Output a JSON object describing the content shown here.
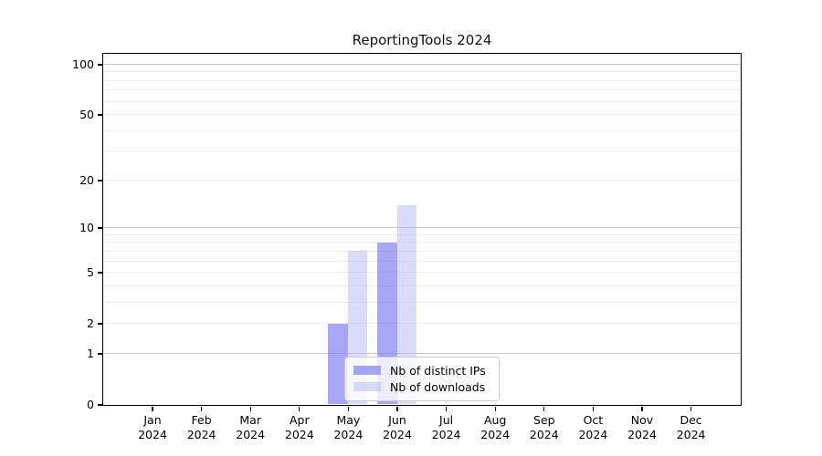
{
  "chart_data": {
    "type": "bar",
    "title": "ReportingTools 2024",
    "x_tick_labels": [
      "Jan\n2024",
      "Feb\n2024",
      "Mar\n2024",
      "Apr\n2024",
      "May\n2024",
      "Jun\n2024",
      "Jul\n2024",
      "Aug\n2024",
      "Sep\n2024",
      "Oct\n2024",
      "Nov\n2024",
      "Dec\n2024"
    ],
    "series": [
      {
        "name": "Nb of distinct IPs",
        "color": "rgba(125,125,242,0.68)",
        "values": [
          0,
          0,
          0,
          0,
          2,
          8,
          0,
          0,
          0,
          0,
          0,
          0
        ]
      },
      {
        "name": "Nb of downloads",
        "color": "rgba(170,170,248,0.42)",
        "values": [
          0,
          0,
          0,
          0,
          7,
          14,
          0,
          0,
          0,
          0,
          0,
          0
        ]
      }
    ],
    "y_ticks": [
      0,
      1,
      2,
      5,
      10,
      20,
      50,
      100
    ],
    "y_major_gridlines": [
      1,
      10,
      100
    ],
    "y_minor_gridlines": [
      2,
      3,
      4,
      5,
      6,
      7,
      8,
      9,
      20,
      30,
      40,
      50,
      60,
      70,
      80,
      90
    ],
    "scale": "log1p",
    "ylim": [
      0,
      116
    ],
    "xlabel": "",
    "ylabel": "",
    "grid": true,
    "legend_position": "lower center"
  },
  "colors": {
    "grid_major": "#c9c9c9",
    "grid_minor": "#ededed",
    "spine": "#000000",
    "background": "#ffffff",
    "bar_distinct_ips": "rgba(125,125,242,0.68)",
    "bar_downloads": "rgba(170,170,248,0.42)"
  }
}
